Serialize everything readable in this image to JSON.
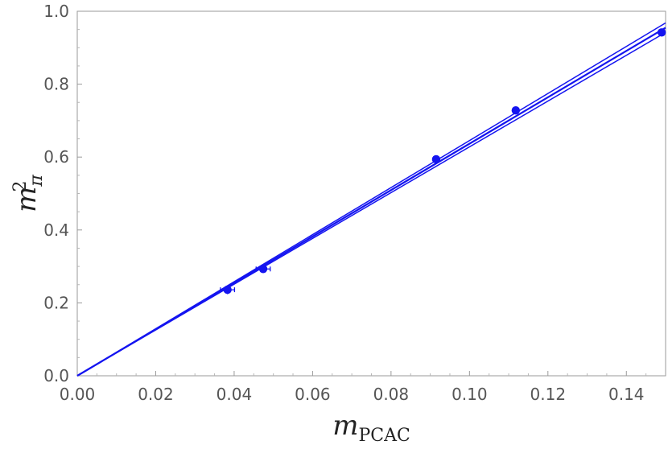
{
  "chart_data": {
    "type": "scatter",
    "title": "",
    "xlabel": {
      "base": "m",
      "sub": "PCAC"
    },
    "ylabel": {
      "base": "m",
      "sub": "π",
      "sup": "2"
    },
    "xlim": [
      0,
      0.15
    ],
    "ylim": [
      0,
      1.0
    ],
    "x_ticks": [
      "0.00",
      "0.02",
      "0.04",
      "0.06",
      "0.08",
      "0.10",
      "0.12",
      "0.14"
    ],
    "y_ticks": [
      "0.0",
      "0.2",
      "0.4",
      "0.6",
      "0.8",
      "1.0"
    ],
    "grid": false,
    "legend": "none",
    "color": "#1414f0",
    "points": [
      {
        "x": 0.0383,
        "y": 0.236,
        "xerr": 0.0018,
        "yerr": 0.012
      },
      {
        "x": 0.0474,
        "y": 0.293,
        "xerr": 0.0018,
        "yerr": 0.008
      },
      {
        "x": 0.0915,
        "y": 0.594,
        "xerr": 0.0005,
        "yerr": 0.004
      },
      {
        "x": 0.1118,
        "y": 0.728,
        "xerr": 0.0005,
        "yerr": 0.004
      },
      {
        "x": 0.149,
        "y": 0.942,
        "xerr": 0.0005,
        "yerr": 0.004
      }
    ],
    "fit_band": {
      "x": [
        0,
        0.15
      ],
      "central": [
        0.0,
        0.955
      ],
      "upper": [
        0.0,
        0.968
      ],
      "lower": [
        0.0,
        0.942
      ]
    }
  }
}
